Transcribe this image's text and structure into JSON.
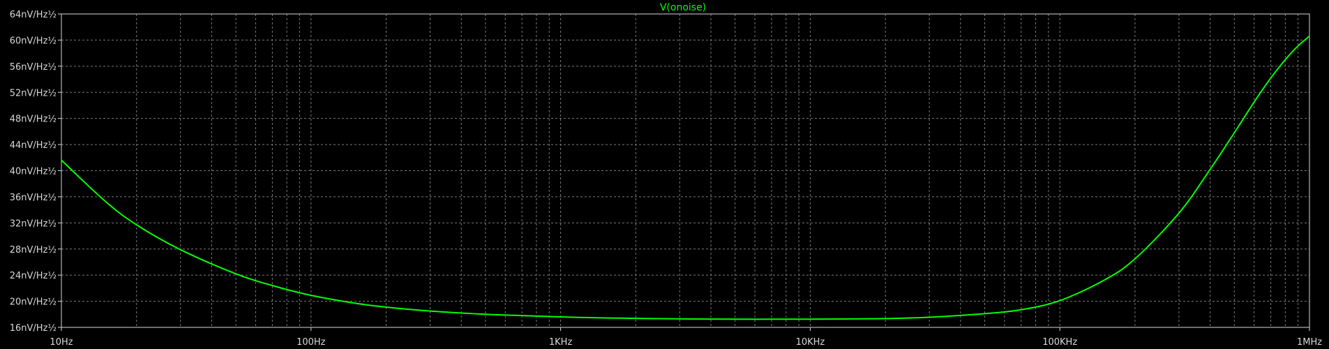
{
  "chart_data": {
    "type": "line",
    "title": "V(onoise)",
    "x_scale": "log",
    "xlim": [
      10,
      1000000
    ],
    "ylim": [
      16,
      64
    ],
    "grid": true,
    "x_ticks": [
      {
        "value": 10,
        "label": "10Hz"
      },
      {
        "value": 100,
        "label": "100Hz"
      },
      {
        "value": 1000,
        "label": "1KHz"
      },
      {
        "value": 10000,
        "label": "10KHz"
      },
      {
        "value": 100000,
        "label": "100KHz"
      },
      {
        "value": 1000000,
        "label": "1MHz"
      }
    ],
    "y_ticks": [
      {
        "value": 16,
        "label": "16nV/Hz½"
      },
      {
        "value": 20,
        "label": "20nV/Hz½"
      },
      {
        "value": 24,
        "label": "24nV/Hz½"
      },
      {
        "value": 28,
        "label": "28nV/Hz½"
      },
      {
        "value": 32,
        "label": "32nV/Hz½"
      },
      {
        "value": 36,
        "label": "36nV/Hz½"
      },
      {
        "value": 40,
        "label": "40nV/Hz½"
      },
      {
        "value": 44,
        "label": "44nV/Hz½"
      },
      {
        "value": 48,
        "label": "48nV/Hz½"
      },
      {
        "value": 52,
        "label": "52nV/Hz½"
      },
      {
        "value": 56,
        "label": "56nV/Hz½"
      },
      {
        "value": 60,
        "label": "60nV/Hz½"
      },
      {
        "value": 64,
        "label": "64nV/Hz½"
      }
    ],
    "series": [
      {
        "name": "V(onoise)",
        "color": "#00ff00",
        "x": [
          10,
          15,
          20,
          30,
          50,
          70,
          100,
          150,
          200,
          300,
          500,
          700,
          1000,
          1500,
          2000,
          3000,
          5000,
          7000,
          10000,
          15000,
          20000,
          30000,
          50000,
          70000,
          100000,
          150000,
          200000,
          300000,
          400000,
          500000,
          600000,
          700000,
          800000,
          900000,
          1000000
        ],
        "y": [
          41.6,
          35.3,
          31.7,
          27.9,
          24.2,
          22.4,
          20.9,
          19.7,
          19.1,
          18.5,
          18.0,
          17.8,
          17.6,
          17.45,
          17.38,
          17.3,
          17.25,
          17.25,
          17.25,
          17.3,
          17.35,
          17.55,
          18.1,
          18.7,
          20.1,
          23.2,
          26.5,
          33.5,
          40.2,
          45.8,
          50.5,
          54.2,
          57.0,
          59.1,
          60.6
        ]
      }
    ]
  },
  "colors": {
    "background": "#000000",
    "trace": "#00ff00",
    "grid": "#7a7a7a",
    "axis": "#d8d8d8"
  }
}
